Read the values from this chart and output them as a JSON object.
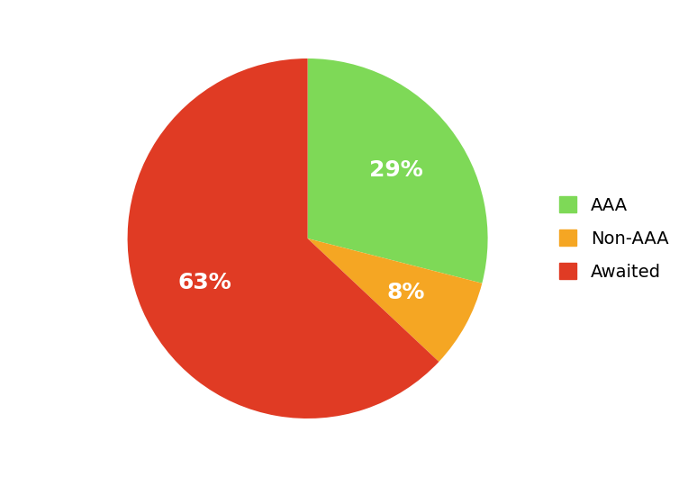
{
  "labels": [
    "AAA",
    "Non-AAA",
    "Awaited"
  ],
  "values": [
    29,
    8,
    63
  ],
  "colors": [
    "#7ED957",
    "#F5A623",
    "#E03B24"
  ],
  "autopct_fontsize": 18,
  "autopct_color": "white",
  "legend_fontsize": 14,
  "startangle": 90,
  "counterclock": false,
  "pctdistance": 0.62,
  "background_color": "#ffffff"
}
